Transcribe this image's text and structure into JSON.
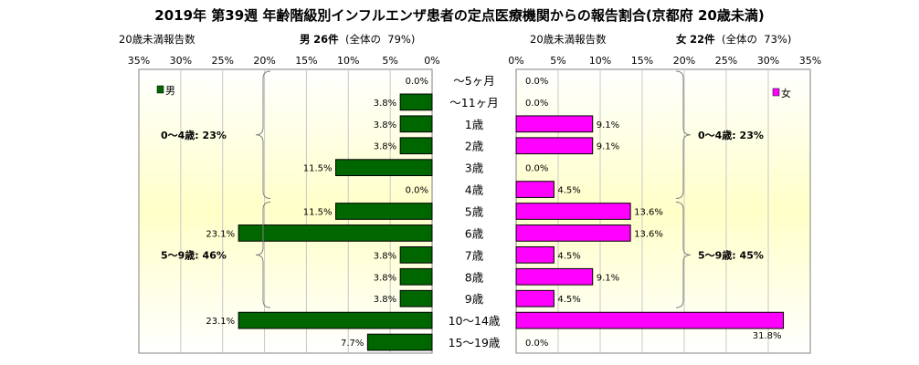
{
  "title": "2019年 第39週 年齢階級別インフルエンザ患者の定点医療機関からの報告割合(京都府 20歳未満)",
  "left_panel": {
    "count_label": "20歳未満報告数",
    "group": "男",
    "count": "26件",
    "total_prefix": "(全体の",
    "total_pct": "79%)",
    "legend": "男",
    "color": "#006600",
    "brackets": [
      {
        "label": "0～4歳: 23%",
        "from": 0,
        "to": 5
      },
      {
        "label": "5～9歳: 46%",
        "from": 6,
        "to": 10
      }
    ]
  },
  "right_panel": {
    "count_label": "20歳未満報告数",
    "group": "女",
    "count": "22件",
    "total_prefix": "(全体の",
    "total_pct": "73%)",
    "legend": "女",
    "color": "#ff00ff",
    "brackets": [
      {
        "label": "0～4歳: 23%",
        "from": 0,
        "to": 5
      },
      {
        "label": "5～9歳: 45%",
        "from": 6,
        "to": 10
      }
    ]
  },
  "chart_data": {
    "type": "bar",
    "orientation": "horizontal-butterfly",
    "categories": [
      "～5ヶ月",
      "～11ヶ月",
      "1歳",
      "2歳",
      "3歳",
      "4歳",
      "5歳",
      "6歳",
      "7歳",
      "8歳",
      "9歳",
      "10～14歳",
      "15～19歳"
    ],
    "x_ticks": [
      "35%",
      "30%",
      "25%",
      "20%",
      "15%",
      "10%",
      "5%",
      "0%",
      "0%",
      "5%",
      "10%",
      "15%",
      "20%",
      "25%",
      "30%",
      "35%"
    ],
    "xlim": [
      0,
      35
    ],
    "series": [
      {
        "name": "男",
        "values": [
          0.0,
          3.8,
          3.8,
          3.8,
          11.5,
          0.0,
          11.5,
          23.1,
          3.8,
          3.8,
          3.8,
          23.1,
          7.7
        ],
        "labels": [
          "0.0%",
          "3.8%",
          "3.8%",
          "3.8%",
          "11.5%",
          "0.0%",
          "11.5%",
          "23.1%",
          "3.8%",
          "3.8%",
          "3.8%",
          "23.1%",
          "7.7%"
        ]
      },
      {
        "name": "女",
        "values": [
          0.0,
          0.0,
          9.1,
          9.1,
          0.0,
          4.5,
          13.6,
          13.6,
          4.5,
          9.1,
          4.5,
          31.8,
          0.0
        ],
        "labels": [
          "0.0%",
          "0.0%",
          "9.1%",
          "9.1%",
          "0.0%",
          "4.5%",
          "13.6%",
          "13.6%",
          "4.5%",
          "9.1%",
          "4.5%",
          "31.8%",
          "0.0%"
        ]
      }
    ]
  }
}
